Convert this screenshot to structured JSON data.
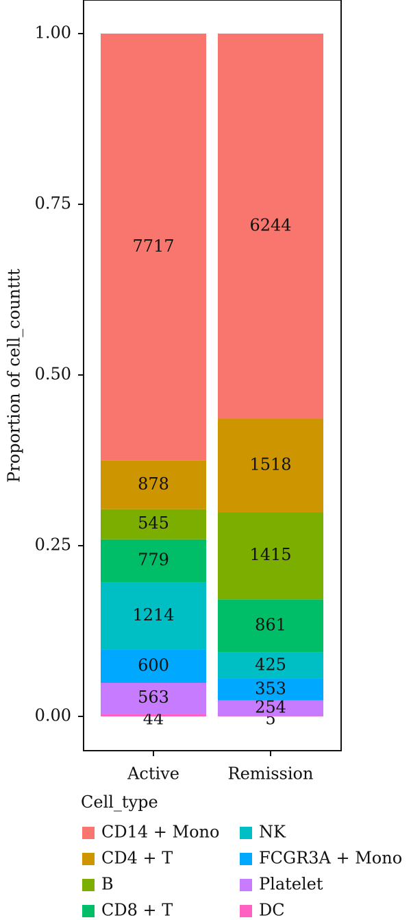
{
  "chart_data": {
    "type": "bar",
    "stacked": true,
    "normalized": true,
    "categories": [
      "Active",
      "Remission"
    ],
    "ylabel": "Proportion of cell_counttt",
    "ylim": [
      0,
      1
    ],
    "yticks": [
      "0.00",
      "0.25",
      "0.50",
      "0.75",
      "1.00"
    ],
    "legend_title": "Cell_type",
    "legend_placement": "bottom",
    "grid": false,
    "series": [
      {
        "name": "DC",
        "color": "#FF61C3",
        "values": [
          44,
          5
        ]
      },
      {
        "name": "Platelet",
        "color": "#C77CFF",
        "values": [
          563,
          254
        ]
      },
      {
        "name": "FCGR3A + Mono",
        "color": "#00A9FF",
        "values": [
          600,
          353
        ]
      },
      {
        "name": "NK",
        "color": "#00BFC4",
        "values": [
          1214,
          425
        ]
      },
      {
        "name": "CD8 + T",
        "color": "#00BE67",
        "values": [
          779,
          861
        ]
      },
      {
        "name": "B",
        "color": "#7CAE00",
        "values": [
          545,
          1415
        ]
      },
      {
        "name": "CD4 + T",
        "color": "#CD9600",
        "values": [
          878,
          1518
        ]
      },
      {
        "name": "CD14 + Mono",
        "color": "#F8766D",
        "values": [
          7717,
          6244
        ]
      }
    ],
    "legend_order": [
      "CD14 + Mono",
      "CD4 + T",
      "B",
      "CD8 + T",
      "NK",
      "FCGR3A + Mono",
      "Platelet",
      "DC"
    ]
  }
}
